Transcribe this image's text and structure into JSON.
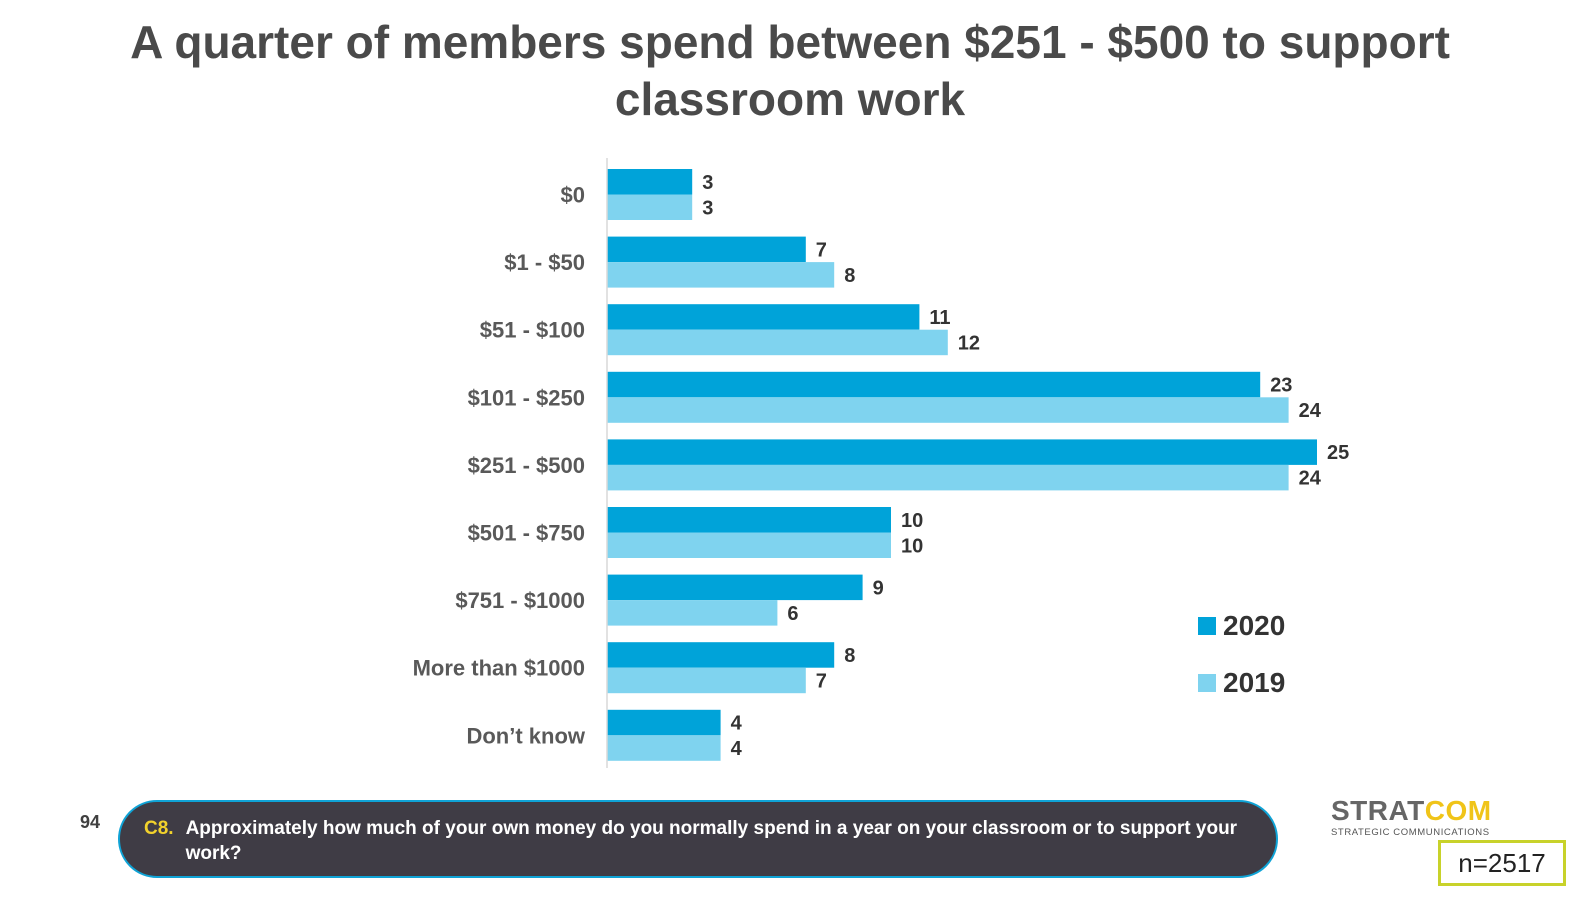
{
  "chart_data": {
    "type": "bar",
    "orientation": "horizontal",
    "title": "A quarter of members spend between $251 - $500 to support classroom work",
    "categories": [
      "$0",
      "$1 - $50",
      "$51 - $100",
      "$101 - $250",
      "$251 - $500",
      "$501 - $750",
      "$751 - $1000",
      "More than $1000",
      "Don’t know"
    ],
    "series": [
      {
        "name": "2020",
        "color": "#00a3d9",
        "values": [
          3,
          7,
          11,
          23,
          25,
          10,
          9,
          8,
          4
        ]
      },
      {
        "name": "2019",
        "color": "#7fd3ef",
        "values": [
          3,
          8,
          12,
          24,
          24,
          10,
          6,
          7,
          4
        ]
      }
    ],
    "xlim": [
      0,
      25
    ],
    "grid": false,
    "legend_position": "bottom-right",
    "data_labels": true
  },
  "page_number": "94",
  "question": {
    "code": "C8.",
    "text": "Approximately how much of your own money do you normally spend in a year on your classroom or to support your work?"
  },
  "logo": {
    "part1": "STRAT",
    "part2": "COM",
    "subtitle": "STRATEGIC COMMUNICATIONS"
  },
  "sample_size": "n=2517"
}
